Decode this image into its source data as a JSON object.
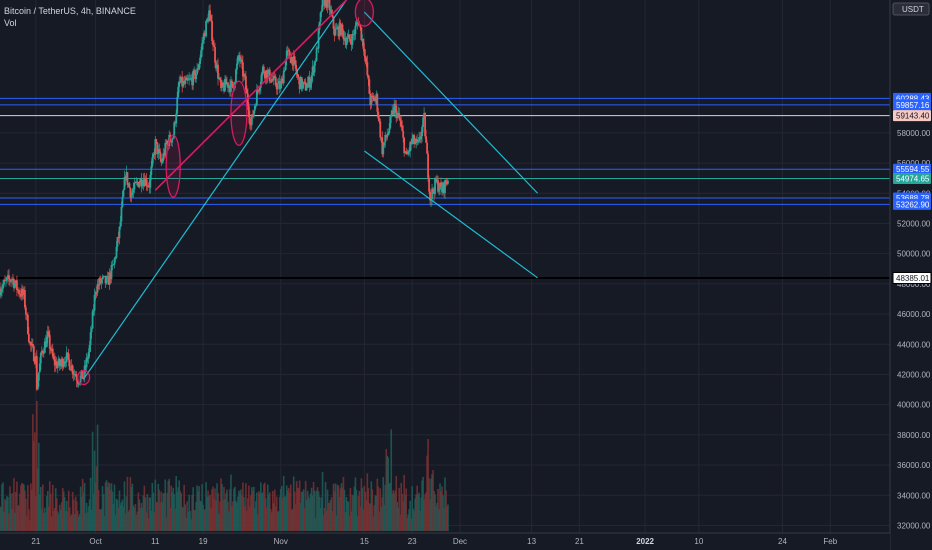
{
  "header": {
    "symbol_line": "Bitcoin / TetherUS, 4h, BINANCE",
    "volume_label": "Vol"
  },
  "chart_data": {
    "type": "candlestick",
    "instrument": "Bitcoin / TetherUS",
    "timeframe": "4h",
    "exchange": "BINANCE",
    "currency_badge": "USDT",
    "y_axis": {
      "min": 31500,
      "max": 66800,
      "ticks": [
        32000,
        34000,
        36000,
        38000,
        40000,
        42000,
        44000,
        46000,
        48000,
        50000,
        52000,
        54000,
        56000,
        58000
      ],
      "tick_labels": [
        "32000.00",
        "34000.00",
        "36000.00",
        "38000.00",
        "40000.00",
        "42000.00",
        "44000.00",
        "46000.00",
        "48000.00",
        "50000.00",
        "52000.00",
        "54000.00",
        "56000.00",
        "58000.00"
      ]
    },
    "x_axis": {
      "start": "2021-09-15",
      "end": "2022-02-11",
      "ticks": [
        {
          "date": "2021-09-21",
          "label": "21",
          "bold": false
        },
        {
          "date": "2021-10-01",
          "label": "Oct",
          "bold": false
        },
        {
          "date": "2021-10-11",
          "label": "11",
          "bold": false
        },
        {
          "date": "2021-10-19",
          "label": "19",
          "bold": false
        },
        {
          "date": "2021-11-01",
          "label": "Nov",
          "bold": false
        },
        {
          "date": "2021-11-15",
          "label": "15",
          "bold": false
        },
        {
          "date": "2021-11-23",
          "label": "23",
          "bold": false
        },
        {
          "date": "2021-12-01",
          "label": "Dec",
          "bold": false
        },
        {
          "date": "2021-12-13",
          "label": "13",
          "bold": false
        },
        {
          "date": "2021-12-21",
          "label": "21",
          "bold": false
        },
        {
          "date": "2022-01-01",
          "label": "2022",
          "bold": true
        },
        {
          "date": "2022-01-10",
          "label": "10",
          "bold": false
        },
        {
          "date": "2022-01-24",
          "label": "24",
          "bold": false
        },
        {
          "date": "2022-02-01",
          "label": "Feb",
          "bold": false
        }
      ]
    },
    "price_path": [
      [
        "2021-09-15",
        47700
      ],
      [
        "2021-09-16",
        48100
      ],
      [
        "2021-09-17",
        48400
      ],
      [
        "2021-09-18",
        47600
      ],
      [
        "2021-09-19",
        47200
      ],
      [
        "2021-09-20",
        44000
      ],
      [
        "2021-09-21",
        43000
      ],
      [
        "2021-09-21",
        40800
      ],
      [
        "2021-09-22",
        43500
      ],
      [
        "2021-09-23",
        44500
      ],
      [
        "2021-09-24",
        42800
      ],
      [
        "2021-09-25",
        42600
      ],
      [
        "2021-09-26",
        43200
      ],
      [
        "2021-09-27",
        42500
      ],
      [
        "2021-09-28",
        41700
      ],
      [
        "2021-09-29",
        41900
      ],
      [
        "2021-09-30",
        43800
      ],
      [
        "2021-10-01",
        47700
      ],
      [
        "2021-10-02",
        48200
      ],
      [
        "2021-10-03",
        48100
      ],
      [
        "2021-10-04",
        49200
      ],
      [
        "2021-10-05",
        51500
      ],
      [
        "2021-10-06",
        55300
      ],
      [
        "2021-10-07",
        53900
      ],
      [
        "2021-10-08",
        54700
      ],
      [
        "2021-10-09",
        55000
      ],
      [
        "2021-10-10",
        54600
      ],
      [
        "2021-10-11",
        57300
      ],
      [
        "2021-10-12",
        56000
      ],
      [
        "2021-10-13",
        57400
      ],
      [
        "2021-10-14",
        57800
      ],
      [
        "2021-10-15",
        61300
      ],
      [
        "2021-10-16",
        61200
      ],
      [
        "2021-10-17",
        61500
      ],
      [
        "2021-10-18",
        62000
      ],
      [
        "2021-10-19",
        64200
      ],
      [
        "2021-10-20",
        66000
      ],
      [
        "2021-10-21",
        63000
      ],
      [
        "2021-10-22",
        60800
      ],
      [
        "2021-10-23",
        61300
      ],
      [
        "2021-10-24",
        61000
      ],
      [
        "2021-10-25",
        63100
      ],
      [
        "2021-10-26",
        61400
      ],
      [
        "2021-10-27",
        58500
      ],
      [
        "2021-10-28",
        60600
      ],
      [
        "2021-10-29",
        62200
      ],
      [
        "2021-10-30",
        61800
      ],
      [
        "2021-10-31",
        61300
      ],
      [
        "2021-11-01",
        61000
      ],
      [
        "2021-11-02",
        63200
      ],
      [
        "2021-11-03",
        62900
      ],
      [
        "2021-11-04",
        61400
      ],
      [
        "2021-11-05",
        61000
      ],
      [
        "2021-11-06",
        61500
      ],
      [
        "2021-11-07",
        63300
      ],
      [
        "2021-11-08",
        66800
      ],
      [
        "2021-11-09",
        66600
      ],
      [
        "2021-11-10",
        64700
      ],
      [
        "2021-11-11",
        64900
      ],
      [
        "2021-11-12",
        64100
      ],
      [
        "2021-11-13",
        64300
      ],
      [
        "2021-11-14",
        65500
      ],
      [
        "2021-11-15",
        63500
      ],
      [
        "2021-11-16",
        60100
      ],
      [
        "2021-11-17",
        60300
      ],
      [
        "2021-11-18",
        56900
      ],
      [
        "2021-11-19",
        58100
      ],
      [
        "2021-11-20",
        59700
      ],
      [
        "2021-11-21",
        58700
      ],
      [
        "2021-11-22",
        56300
      ],
      [
        "2021-11-23",
        57500
      ],
      [
        "2021-11-24",
        57100
      ],
      [
        "2021-11-25",
        58900
      ],
      [
        "2021-11-26",
        53700
      ],
      [
        "2021-11-27",
        54700
      ],
      [
        "2021-11-28",
        54200
      ],
      [
        "2021-11-29",
        54950
      ]
    ],
    "volume_bars": {
      "description": "per-candle volume histogram along the bottom of the chart, from 2021-09-15 to 2021-11-29, mostly low with spikes around Sep 21, Oct 1, Nov 19 and Nov 26",
      "spikes": [
        "2021-09-21",
        "2021-10-01",
        "2021-11-19",
        "2021-11-26"
      ]
    },
    "horizontal_levels": [
      {
        "price": 60288.43,
        "label": "60288.43",
        "color": "#2962ff"
      },
      {
        "price": 59857.16,
        "label": "59857.16",
        "color": "#2962ff"
      },
      {
        "price": 59143.4,
        "label": "59143.40",
        "color": "#f7c9c4"
      },
      {
        "price": 55594.55,
        "label": "55594.55",
        "color": "#2962ff"
      },
      {
        "price": 54974.65,
        "label": "54974.65",
        "color": "#26a69a"
      },
      {
        "price": 53688.78,
        "label": "53688.78",
        "color": "#2962ff"
      },
      {
        "price": 53262.9,
        "label": "53262.90",
        "color": "#2962ff"
      },
      {
        "price": 48385.01,
        "label": "48385.01",
        "color": "#ffffff"
      }
    ],
    "trendlines": [
      {
        "from": [
          "2021-09-29",
          41700
        ],
        "to": [
          "2021-11-12",
          66800
        ],
        "color": "#1fbcd2"
      },
      {
        "from": [
          "2021-10-11",
          54200
        ],
        "to": [
          "2021-11-12",
          66800
        ],
        "color": "#d81b60"
      },
      {
        "from": [
          "2021-11-15",
          66000
        ],
        "to": [
          "2021-12-14",
          54000
        ],
        "color": "#1fbcd2"
      },
      {
        "from": [
          "2021-11-15",
          56800
        ],
        "to": [
          "2021-12-14",
          48400
        ],
        "color": "#1fbcd2"
      }
    ],
    "ellipses": [
      {
        "date": "2021-09-29",
        "price": 41800,
        "color": "#d81b60"
      },
      {
        "date": "2021-10-14",
        "price": 55800,
        "color": "#d81b60"
      },
      {
        "date": "2021-10-25",
        "price": 59300,
        "color": "#d81b60"
      },
      {
        "date": "2021-11-15",
        "price": 66000,
        "color": "#d81b60"
      }
    ],
    "colors": {
      "background": "#161a25",
      "grid": "#242733",
      "up": "#26a69a",
      "down": "#ef5350",
      "axis_text": "#b2b5be",
      "axis_line": "#363a45"
    },
    "grid": true
  }
}
